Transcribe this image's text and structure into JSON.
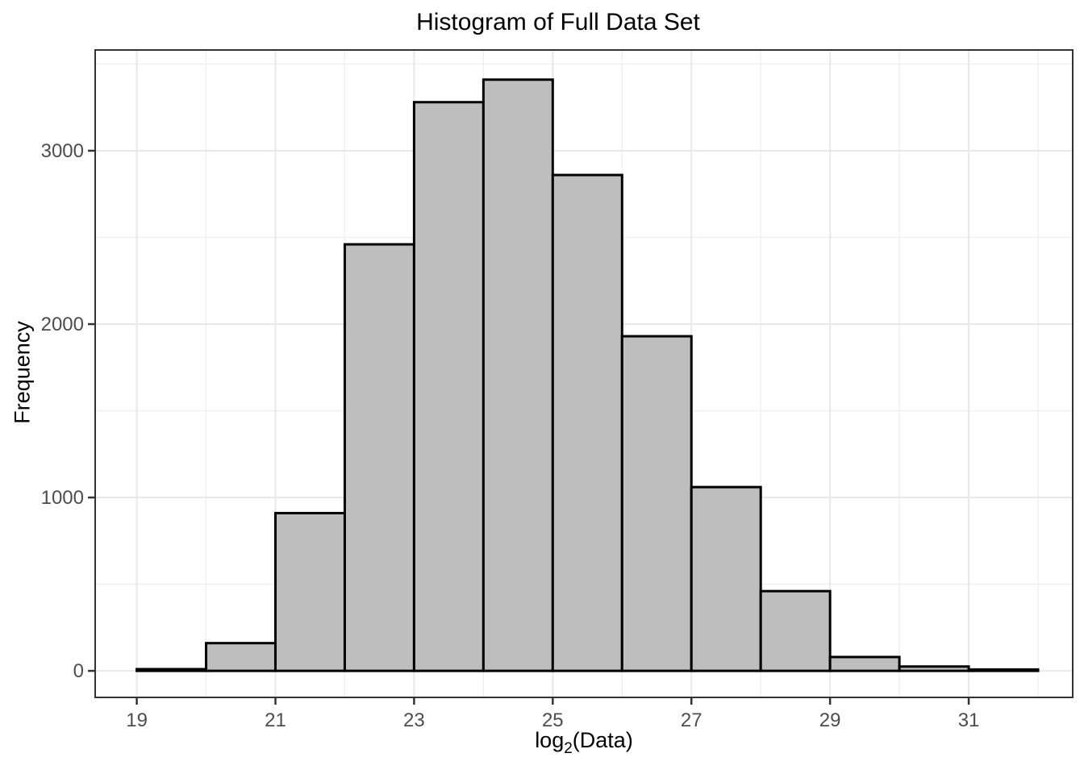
{
  "chart_data": {
    "type": "bar",
    "subtype": "histogram",
    "title": "Histogram of Full Data Set",
    "xlabel_prefix": "log",
    "xlabel_subscript": "2",
    "xlabel_suffix": "(Data)",
    "ylabel": "Frequency",
    "bin_width": 1,
    "bin_edges": [
      19,
      20,
      21,
      22,
      23,
      24,
      25,
      26,
      27,
      28,
      29,
      30,
      31,
      32
    ],
    "counts": [
      10,
      160,
      910,
      2460,
      3280,
      3410,
      2860,
      1930,
      1060,
      460,
      80,
      25,
      8
    ],
    "x_ticks": [
      19,
      21,
      23,
      25,
      27,
      29,
      31
    ],
    "x_tick_labels": [
      "19",
      "21",
      "23",
      "25",
      "27",
      "29",
      "31"
    ],
    "x_minor_ticks": [
      20,
      22,
      24,
      26,
      28,
      30,
      32
    ],
    "y_ticks": [
      0,
      1000,
      2000,
      3000
    ],
    "y_tick_labels": [
      "0",
      "1000",
      "2000",
      "3000"
    ],
    "y_minor_ticks": [
      500,
      1500,
      2500,
      3500
    ],
    "xlim": [
      18.4,
      32.5
    ],
    "ylim": [
      -153,
      3581
    ],
    "grid": true,
    "legend": "none",
    "colors": {
      "bar_fill": "#bebebe",
      "bar_stroke": "#000000",
      "grid_major": "#e8e8e8",
      "grid_minor": "#f0f0f0",
      "panel_border": "#333333",
      "tick_mark": "#333333",
      "tick_label": "#4d4d4d",
      "title_text": "#000000"
    }
  }
}
